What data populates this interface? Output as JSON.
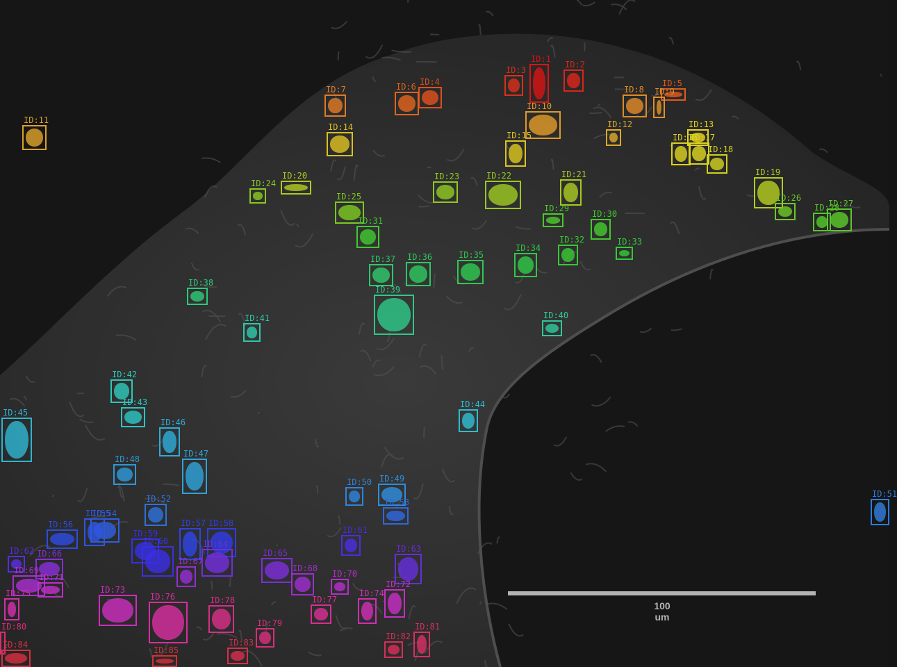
{
  "image": {
    "scale_bar_label": "100 um",
    "label_prefix": "ID:",
    "cells": [
      {
        "id": "1",
        "color": "#d81414"
      },
      {
        "id": "2",
        "color": "#d8261a"
      },
      {
        "id": "3",
        "color": "#d8301a"
      },
      {
        "id": "4",
        "color": "#e0501c"
      },
      {
        "id": "5",
        "color": "#e05a1c"
      },
      {
        "id": "6",
        "color": "#e0641e"
      },
      {
        "id": "7",
        "color": "#e07a28"
      },
      {
        "id": "8",
        "color": "#e08a28"
      },
      {
        "id": "9",
        "color": "#e09028"
      },
      {
        "id": "10",
        "color": "#e09a2a"
      },
      {
        "id": "11",
        "color": "#dca02a"
      },
      {
        "id": "12",
        "color": "#dca82a"
      },
      {
        "id": "13",
        "color": "#e6d41e"
      },
      {
        "id": "14",
        "color": "#dcc020"
      },
      {
        "id": "15",
        "color": "#dcc420"
      },
      {
        "id": "16",
        "color": "#dcd020"
      },
      {
        "id": "17",
        "color": "#dcd420"
      },
      {
        "id": "18",
        "color": "#d0d020"
      },
      {
        "id": "19",
        "color": "#b4cc20"
      },
      {
        "id": "20",
        "color": "#b0c822"
      },
      {
        "id": "21",
        "color": "#a8c822"
      },
      {
        "id": "22",
        "color": "#9cc822"
      },
      {
        "id": "23",
        "color": "#90c822"
      },
      {
        "id": "24",
        "color": "#88c822"
      },
      {
        "id": "25",
        "color": "#7cc822"
      },
      {
        "id": "26",
        "color": "#6cc826"
      },
      {
        "id": "27",
        "color": "#5cc828"
      },
      {
        "id": "28",
        "color": "#52c82a"
      },
      {
        "id": "29",
        "color": "#4cc82a"
      },
      {
        "id": "30",
        "color": "#44c82e"
      },
      {
        "id": "31",
        "color": "#40c830"
      },
      {
        "id": "32",
        "color": "#38c834"
      },
      {
        "id": "33",
        "color": "#34c83c"
      },
      {
        "id": "34",
        "color": "#30c844"
      },
      {
        "id": "35",
        "color": "#2ec850"
      },
      {
        "id": "36",
        "color": "#2ec85e"
      },
      {
        "id": "37",
        "color": "#2ec86a"
      },
      {
        "id": "38",
        "color": "#2ec878"
      },
      {
        "id": "39",
        "color": "#2ec888"
      },
      {
        "id": "40",
        "color": "#2ec89a"
      },
      {
        "id": "41",
        "color": "#2ec8aa"
      },
      {
        "id": "42",
        "color": "#2ec8b8"
      },
      {
        "id": "43",
        "color": "#2ec4c4"
      },
      {
        "id": "44",
        "color": "#2ebcd0"
      },
      {
        "id": "45",
        "color": "#2eb4d0"
      },
      {
        "id": "46",
        "color": "#2eacd8"
      },
      {
        "id": "47",
        "color": "#2ea4d8"
      },
      {
        "id": "48",
        "color": "#2e98d8"
      },
      {
        "id": "49",
        "color": "#2e8edc"
      },
      {
        "id": "50",
        "color": "#2e84dc"
      },
      {
        "id": "51",
        "color": "#2e7cdc"
      },
      {
        "id": "52",
        "color": "#2e72dc"
      },
      {
        "id": "53",
        "color": "#2e68e0"
      },
      {
        "id": "54",
        "color": "#2e5ee0"
      },
      {
        "id": "55",
        "color": "#2e56e0"
      },
      {
        "id": "56",
        "color": "#2e4ce0"
      },
      {
        "id": "57",
        "color": "#2e44e4"
      },
      {
        "id": "58",
        "color": "#303ce4"
      },
      {
        "id": "59",
        "color": "#3430e4"
      },
      {
        "id": "60",
        "color": "#3c2ee4"
      },
      {
        "id": "61",
        "color": "#4a2ee0"
      },
      {
        "id": "62",
        "color": "#582ee0"
      },
      {
        "id": "63",
        "color": "#662edc"
      },
      {
        "id": "64",
        "color": "#722edc"
      },
      {
        "id": "65",
        "color": "#7c2ed8"
      },
      {
        "id": "66",
        "color": "#882ed8"
      },
      {
        "id": "67",
        "color": "#942ed4"
      },
      {
        "id": "68",
        "color": "#9e2ed0"
      },
      {
        "id": "69",
        "color": "#aa2ed0"
      },
      {
        "id": "70",
        "color": "#b42ecc"
      },
      {
        "id": "71",
        "color": "#be2ec8"
      },
      {
        "id": "72",
        "color": "#c62ec4"
      },
      {
        "id": "73",
        "color": "#cc2ebe"
      },
      {
        "id": "74",
        "color": "#d02eb4"
      },
      {
        "id": "75",
        "color": "#d42eaa"
      },
      {
        "id": "76",
        "color": "#d82ea0"
      },
      {
        "id": "77",
        "color": "#d82e94"
      },
      {
        "id": "78",
        "color": "#d82e88"
      },
      {
        "id": "79",
        "color": "#d82e7c"
      },
      {
        "id": "80",
        "color": "#d82e70"
      },
      {
        "id": "81",
        "color": "#d82e64"
      },
      {
        "id": "82",
        "color": "#d82e58"
      },
      {
        "id": "83",
        "color": "#d82e4c"
      },
      {
        "id": "84",
        "color": "#d82e40"
      },
      {
        "id": "85",
        "color": "#d82e36"
      }
    ]
  }
}
